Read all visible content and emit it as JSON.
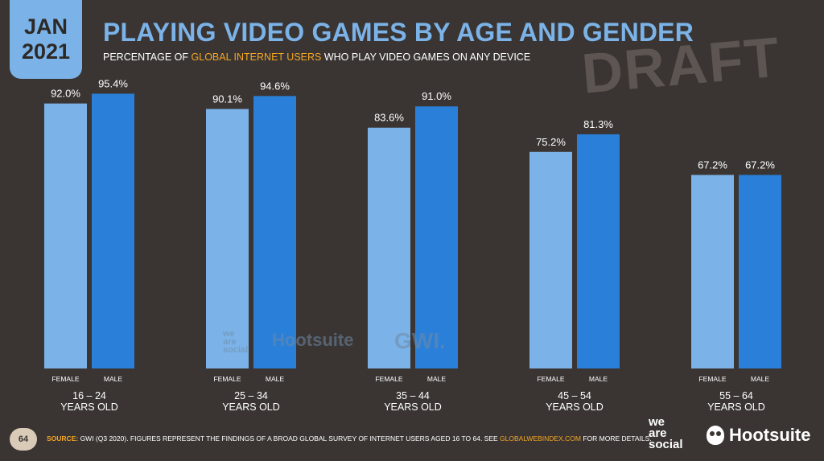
{
  "header": {
    "month": "JAN",
    "year": "2021",
    "title": "PLAYING VIDEO GAMES BY AGE AND GENDER",
    "subtitle_pre": "PERCENTAGE OF ",
    "subtitle_highlight": "GLOBAL INTERNET USERS",
    "subtitle_post": " WHO PLAY VIDEO GAMES ON ANY DEVICE",
    "watermark": "DRAFT"
  },
  "colors": {
    "female": "#7bb3e8",
    "male": "#2a7fd9",
    "accent": "#f5a623",
    "title": "#7bb3e8",
    "background": "#3a3533"
  },
  "chart_data": {
    "type": "bar",
    "categories": [
      "16 – 24",
      "25 – 34",
      "35 – 44",
      "45 – 54",
      "55 – 64"
    ],
    "category_sublabel": "YEARS OLD",
    "series": [
      {
        "name": "FEMALE",
        "values": [
          92.0,
          90.1,
          83.6,
          75.2,
          67.2
        ]
      },
      {
        "name": "MALE",
        "values": [
          95.4,
          94.6,
          91.0,
          81.3,
          67.2
        ]
      }
    ],
    "value_labels": [
      [
        "92.0%",
        "90.1%",
        "83.6%",
        "75.2%",
        "67.2%"
      ],
      [
        "95.4%",
        "94.6%",
        "91.0%",
        "81.3%",
        "67.2%"
      ]
    ],
    "ylim": [
      0,
      100
    ],
    "grid": false,
    "title": "PLAYING VIDEO GAMES BY AGE AND GENDER",
    "xlabel": "",
    "ylabel": ""
  },
  "chart_watermarks": {
    "we_are_social": "we\nare\nsocial",
    "hootsuite": "Hootsuite",
    "gwi": "GWI."
  },
  "footer": {
    "page_number": "64",
    "source_label": "SOURCE:",
    "source_text": " GWI (Q3 2020). FIGURES REPRESENT THE FINDINGS OF A BROAD GLOBAL SURVEY OF INTERNET USERS AGED 16 TO 64. SEE ",
    "source_link": "GLOBALWEBINDEX.COM",
    "source_tail": " FOR MORE DETAILS.",
    "logo_was": "we\nare\nsocial",
    "logo_hootsuite": "Hootsuite"
  }
}
